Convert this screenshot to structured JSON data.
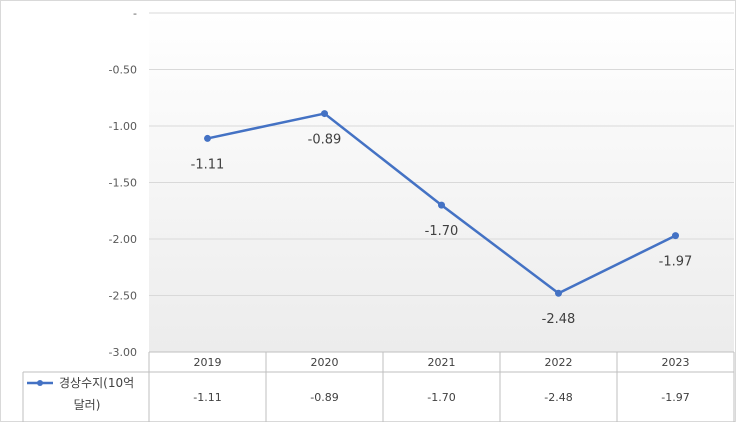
{
  "chart_data": {
    "type": "line",
    "title": "",
    "xlabel": "",
    "ylabel": "",
    "categories": [
      "2019",
      "2020",
      "2021",
      "2022",
      "2023"
    ],
    "series": [
      {
        "name": "경상수지(10억 달러)",
        "legend_lines": [
          "경상수지(10억",
          "달러)"
        ],
        "values": [
          -1.11,
          -0.89,
          -1.7,
          -2.48,
          -1.97
        ],
        "value_labels": [
          "-1.11",
          "-0.89",
          "-1.70",
          "-2.48",
          "-1.97"
        ],
        "color": "#4472c4"
      }
    ],
    "ylim": [
      -3.0,
      0.0
    ],
    "y_ticks": [
      0.0,
      -0.5,
      -1.0,
      -1.5,
      -2.0,
      -2.5,
      -3.0
    ],
    "y_tick_labels": [
      "-",
      "-0.50",
      "-1.00",
      "-1.50",
      "-2.00",
      "-2.50",
      "-3.00"
    ],
    "grid": true,
    "data_table": true,
    "legend": "data-table-left"
  }
}
